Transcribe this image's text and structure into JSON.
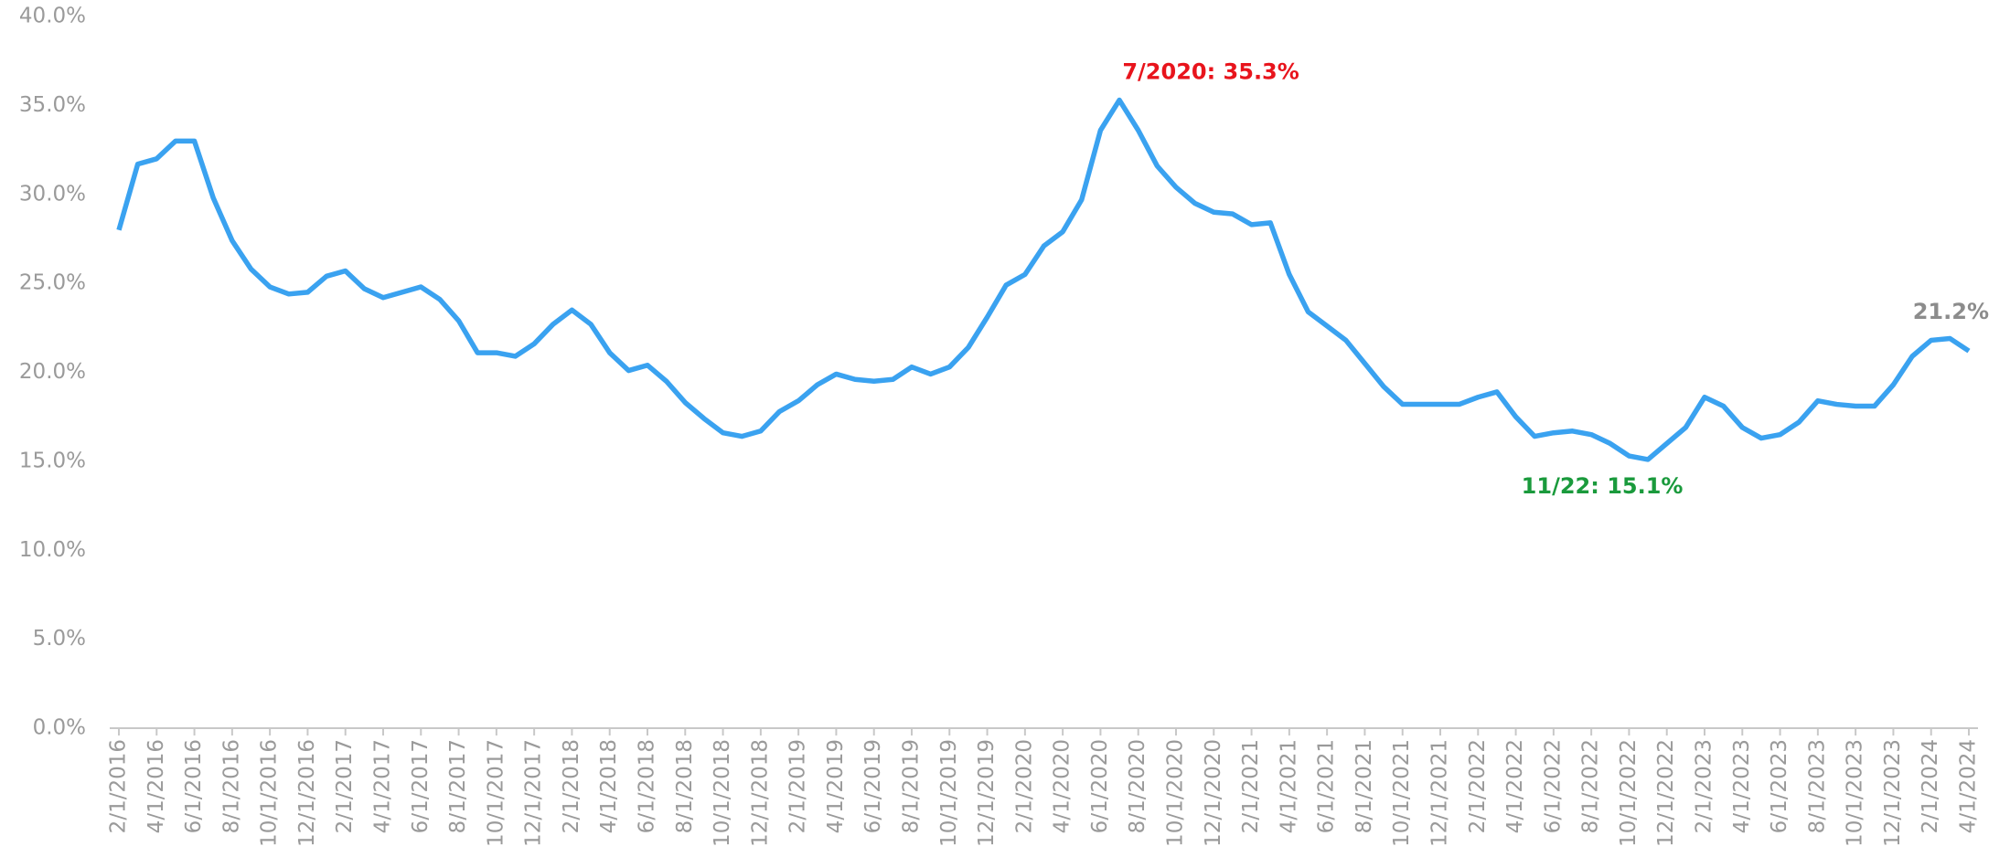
{
  "chart_data": {
    "type": "line",
    "categories": [
      "2/1/2016",
      null,
      "4/1/2016",
      null,
      "6/1/2016",
      null,
      "8/1/2016",
      null,
      "10/1/2016",
      null,
      "12/1/2016",
      null,
      "2/1/2017",
      null,
      "4/1/2017",
      null,
      "6/1/2017",
      null,
      "8/1/2017",
      null,
      "10/1/2017",
      null,
      "12/1/2017",
      null,
      "2/1/2018",
      null,
      "4/1/2018",
      null,
      "6/1/2018",
      null,
      "8/1/2018",
      null,
      "10/1/2018",
      null,
      "12/1/2018",
      null,
      "2/1/2019",
      null,
      "4/1/2019",
      null,
      "6/1/2019",
      null,
      "8/1/2019",
      null,
      "10/1/2019",
      null,
      "12/1/2019",
      null,
      "2/1/2020",
      null,
      "4/1/2020",
      null,
      "6/1/2020",
      null,
      "8/1/2020",
      null,
      "10/1/2020",
      null,
      "12/1/2020",
      null,
      "2/1/2021",
      null,
      "4/1/2021",
      null,
      "6/1/2021",
      null,
      "8/1/2021",
      null,
      "10/1/2021",
      null,
      "12/1/2021",
      null,
      "2/1/2022",
      null,
      "4/1/2022",
      null,
      "6/1/2022",
      null,
      "8/1/2022",
      null,
      "10/1/2022",
      null,
      "12/1/2022",
      null,
      "2/1/2023",
      null,
      "4/1/2023",
      null,
      "6/1/2023",
      null,
      "8/1/2023",
      null,
      "10/1/2023",
      null,
      "12/1/2023",
      null,
      "2/1/2024",
      null,
      "4/1/2024"
    ],
    "series": [
      {
        "color": "#3aa2f0",
        "values": [
          28.0,
          31.7,
          32.0,
          33.0,
          33.0,
          29.8,
          27.4,
          25.8,
          24.8,
          24.4,
          24.5,
          25.4,
          25.7,
          24.7,
          24.2,
          24.5,
          24.8,
          24.1,
          22.9,
          21.1,
          21.1,
          20.9,
          21.6,
          22.7,
          23.5,
          22.7,
          21.1,
          20.1,
          20.4,
          19.5,
          18.3,
          17.4,
          16.6,
          16.4,
          16.7,
          17.8,
          18.4,
          19.3,
          19.9,
          19.6,
          19.5,
          19.6,
          20.3,
          19.9,
          20.3,
          21.4,
          23.1,
          24.9,
          25.5,
          27.1,
          27.9,
          29.7,
          33.6,
          35.3,
          33.6,
          31.6,
          30.4,
          29.5,
          29.0,
          28.9,
          28.3,
          28.4,
          25.5,
          23.4,
          22.6,
          21.8,
          20.5,
          19.2,
          18.2,
          18.2,
          18.2,
          18.2,
          18.6,
          18.9,
          17.5,
          16.4,
          16.6,
          16.7,
          16.5,
          16.0,
          15.3,
          15.1,
          16.0,
          16.9,
          18.6,
          18.1,
          16.9,
          16.3,
          16.5,
          17.2,
          18.4,
          18.2,
          18.1,
          18.1,
          19.3,
          20.9,
          21.8,
          21.9,
          21.2
        ]
      }
    ],
    "ylim": [
      0,
      40
    ],
    "yticks": [
      {
        "value": 0,
        "label": "0.0%"
      },
      {
        "value": 5,
        "label": "5.0%"
      },
      {
        "value": 10,
        "label": "10.0%"
      },
      {
        "value": 15,
        "label": "15.0%"
      },
      {
        "value": 20,
        "label": "20.0%"
      },
      {
        "value": 25,
        "label": "25.0%"
      },
      {
        "value": 30,
        "label": "30.0%"
      },
      {
        "value": 35,
        "label": "35.0%"
      },
      {
        "value": 40,
        "label": "40.0%"
      }
    ],
    "grid": false,
    "annotations": [
      {
        "text": "7/2020: 35.3%",
        "color": "#e8141c"
      },
      {
        "text": "11/22: 15.1%",
        "color": "#1a9a3c"
      },
      {
        "text": "21.2%",
        "color": "#8c8c8c"
      }
    ]
  }
}
